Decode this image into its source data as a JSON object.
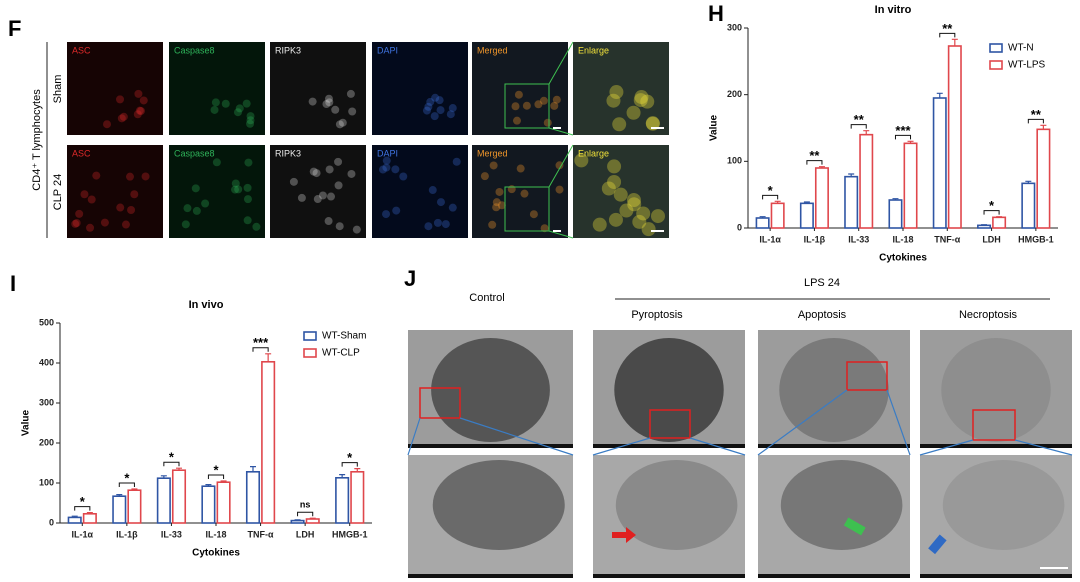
{
  "chart_data": [
    {
      "type": "bar",
      "panel": "H",
      "title": "In vitro",
      "x_label": "Cytokines",
      "y_label": "Value",
      "categories": [
        "IL-1α",
        "IL-1β",
        "IL-33",
        "IL-18",
        "TNF-α",
        "LDH",
        "HMGB-1"
      ],
      "series": [
        {
          "name": "WT-N",
          "color": "#2f55a4",
          "values": [
            15,
            37,
            77,
            42,
            195,
            4,
            67
          ],
          "errors": [
            2,
            2,
            4,
            2,
            7,
            1,
            3
          ]
        },
        {
          "name": "WT-LPS",
          "color": "#e0474c",
          "values": [
            37,
            90,
            140,
            127,
            273,
            16,
            148
          ],
          "errors": [
            3,
            2,
            6,
            3,
            10,
            1,
            6
          ]
        }
      ],
      "significance": [
        "*",
        "**",
        "**",
        "***",
        "**",
        "*",
        "**"
      ],
      "ylim": [
        0,
        300
      ],
      "yticks": [
        0,
        100,
        200,
        300
      ],
      "legend": "upper right"
    },
    {
      "type": "bar",
      "panel": "I",
      "title": "In vivo",
      "x_label": "Cytokines",
      "y_label": "Value",
      "categories": [
        "IL-1α",
        "IL-1β",
        "IL-33",
        "IL-18",
        "TNF-α",
        "LDH",
        "HMGB-1"
      ],
      "series": [
        {
          "name": "WT-Sham",
          "color": "#2f55a4",
          "values": [
            14,
            67,
            112,
            92,
            128,
            6,
            113
          ],
          "errors": [
            3,
            4,
            6,
            4,
            13,
            2,
            8
          ]
        },
        {
          "name": "WT-CLP",
          "color": "#e0474c",
          "values": [
            23,
            82,
            132,
            102,
            403,
            10,
            128
          ],
          "errors": [
            3,
            3,
            5,
            3,
            20,
            2,
            8
          ]
        }
      ],
      "significance": [
        "*",
        "*",
        "*",
        "*",
        "***",
        "ns",
        "*"
      ],
      "ylim": [
        0,
        500
      ],
      "yticks": [
        0,
        100,
        200,
        300,
        400,
        500
      ],
      "legend": "upper right"
    }
  ],
  "figure_f": {
    "panel": "F",
    "cell_type": "CD4⁺ T lymphocytes",
    "rows": [
      "Sham",
      "CLP 24"
    ],
    "channels": [
      {
        "label": "ASC",
        "color": "#e02a2a"
      },
      {
        "label": "Caspase8",
        "color": "#2fb35a"
      },
      {
        "label": "RIPK3",
        "color": "#e8e8e8"
      },
      {
        "label": "DAPI",
        "color": "#3f73e0"
      },
      {
        "label": "Merged",
        "color": "#f0962a"
      },
      {
        "label": "Enlarge",
        "color": "#f2e23a"
      }
    ]
  },
  "figure_j": {
    "panel": "J",
    "control": "Control",
    "treatment": "LPS 24",
    "death_types": [
      "Pyroptosis",
      "Apoptosis",
      "Necroptosis"
    ]
  }
}
